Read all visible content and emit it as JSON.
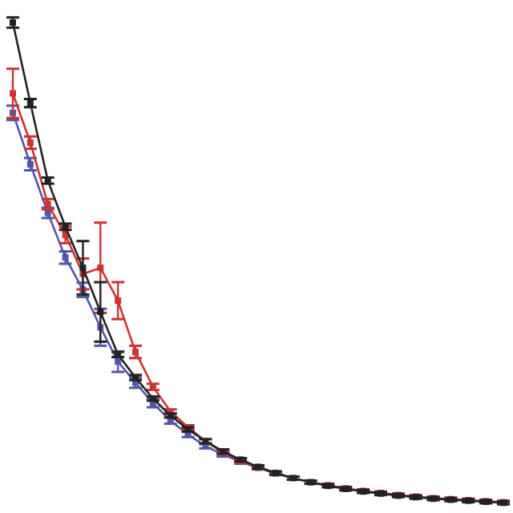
{
  "chart_data": {
    "type": "line",
    "title": "",
    "xlabel": "",
    "ylabel": "",
    "grid": false,
    "legend": "none",
    "x": [
      1,
      2,
      3,
      4,
      5,
      6,
      7,
      8,
      9,
      10,
      11,
      12,
      13,
      14,
      15,
      16,
      17,
      18,
      19,
      20,
      21,
      22,
      23,
      24,
      25,
      26,
      27,
      28,
      29
    ],
    "xlim": [
      1,
      29
    ],
    "ylim": [
      0,
      1
    ],
    "series": [
      {
        "color": "#222222",
        "values": [
          0.956,
          0.799,
          0.648,
          0.558,
          0.478,
          0.392,
          0.309,
          0.264,
          0.223,
          0.19,
          0.163,
          0.14,
          0.12,
          0.104,
          0.09,
          0.078,
          0.068,
          0.06,
          0.053,
          0.047,
          0.042,
          0.038,
          0.034,
          0.031,
          0.028,
          0.026,
          0.024,
          0.022,
          0.02
        ],
        "error": [
          0.01,
          0.008,
          0.006,
          0.006,
          0.052,
          0.058,
          0.005,
          0.005,
          0.004,
          0.004,
          0.004,
          0.004,
          0.004,
          0.003,
          0.003,
          0.003,
          0.003,
          0.003,
          0.003,
          0.003,
          0.003,
          0.003,
          0.003,
          0.003,
          0.003,
          0.003,
          0.003,
          0.003,
          0.003
        ]
      },
      {
        "color": "#cc3333",
        "values": [
          0.818,
          0.722,
          0.602,
          0.542,
          0.466,
          0.478,
          0.414,
          0.314,
          0.246,
          0.198,
          0.167,
          0.14,
          0.118,
          0.102,
          0.089,
          0.078,
          0.068,
          0.06,
          0.054,
          0.048,
          0.043,
          0.039,
          0.035,
          0.032,
          0.029,
          0.027,
          0.025,
          0.023,
          0.021
        ],
        "error": [
          0.048,
          0.012,
          0.01,
          0.016,
          0.03,
          0.088,
          0.036,
          0.012,
          0.006,
          0.004,
          0.004,
          0.004,
          0.004,
          0.004,
          0.003,
          0.003,
          0.003,
          0.003,
          0.003,
          0.003,
          0.003,
          0.003,
          0.003,
          0.003,
          0.003,
          0.003,
          0.003,
          0.003,
          0.003
        ]
      },
      {
        "color": "#5555aa",
        "values": [
          0.78,
          0.68,
          0.585,
          0.498,
          0.435,
          0.362,
          0.295,
          0.254,
          0.214,
          0.18,
          0.153,
          0.13,
          0.114,
          0.1,
          0.088,
          0.077,
          0.068,
          0.06,
          0.053,
          0.047,
          0.042,
          0.038,
          0.034,
          0.031,
          0.028,
          0.026,
          0.024,
          0.022,
          0.02
        ],
        "error": [
          0.014,
          0.012,
          0.01,
          0.012,
          0.014,
          0.036,
          0.02,
          0.01,
          0.008,
          0.006,
          0.005,
          0.004,
          0.004,
          0.004,
          0.003,
          0.003,
          0.003,
          0.003,
          0.003,
          0.003,
          0.003,
          0.003,
          0.003,
          0.003,
          0.003,
          0.003,
          0.003,
          0.003,
          0.003
        ]
      }
    ]
  }
}
